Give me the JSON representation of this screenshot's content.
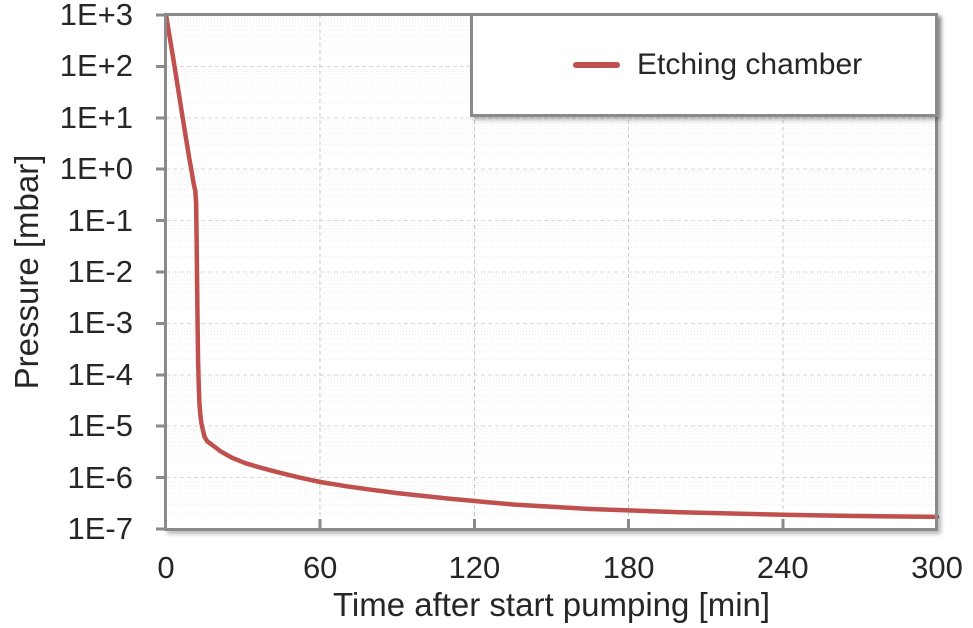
{
  "figure": {
    "background": "#FFFFFF",
    "border_color": "#8A8A8A",
    "text_color": "#262626",
    "grid_major_color": "#D9D9D9",
    "grid_minor_color": "#ECECEC",
    "grid_vertical_color": "#C9C9C9"
  },
  "chart_data": {
    "type": "line",
    "title": "",
    "xlabel": "Time after start pumping [min]",
    "ylabel": "Pressure [mbar]",
    "x_axis": {
      "min": 0,
      "max": 300,
      "ticks": [
        0,
        60,
        120,
        180,
        240,
        300
      ],
      "tick_labels": [
        "0",
        "60",
        "120",
        "180",
        "240",
        "300"
      ]
    },
    "y_axis": {
      "scale": "log",
      "min": 1e-07,
      "max": 1000.0,
      "tick_values": [
        1000.0,
        100.0,
        10.0,
        1.0,
        0.1,
        0.01,
        0.001,
        0.0001,
        1e-05,
        1e-06,
        1e-07
      ],
      "tick_labels": [
        "1E+3",
        "1E+2",
        "1E+1",
        "1E+0",
        "1E-1",
        "1E-2",
        "1E-3",
        "1E-4",
        "1E-5",
        "1E-6",
        "1E-7"
      ]
    },
    "grid": {
      "vertical_lines_at": [
        60,
        120,
        180,
        240
      ],
      "horizontal_major": true,
      "horizontal_minor_log": true
    },
    "legend": {
      "label": "Etching chamber",
      "position": "top-right",
      "line_color": "#C0504D"
    },
    "series": [
      {
        "name": "Etching chamber",
        "color": "#C0504D",
        "points": [
          [
            0,
            1000
          ],
          [
            0.7,
            620
          ],
          [
            1.4,
            380
          ],
          [
            2.1,
            235
          ],
          [
            2.8,
            145
          ],
          [
            3.5,
            88
          ],
          [
            4.2,
            53
          ],
          [
            5,
            30
          ],
          [
            5.7,
            18
          ],
          [
            6.3,
            11.5
          ],
          [
            7,
            7
          ],
          [
            7.7,
            4.2
          ],
          [
            8.4,
            2.6
          ],
          [
            9,
            1.7
          ],
          [
            9.6,
            1.15
          ],
          [
            10.2,
            0.78
          ],
          [
            10.7,
            0.55
          ],
          [
            11.1,
            0.44
          ],
          [
            11.4,
            0.38
          ],
          [
            11.7,
            0.22
          ],
          [
            11.9,
            0.045
          ],
          [
            12.1,
            0.006
          ],
          [
            12.3,
            0.0009
          ],
          [
            12.5,
            0.00018
          ],
          [
            12.75,
            6e-05
          ],
          [
            13,
            2.8e-05
          ],
          [
            13.4,
            1.6e-05
          ],
          [
            13.8,
            1.12e-05
          ],
          [
            14.3,
            8.5e-06
          ],
          [
            15,
            6.2e-06
          ],
          [
            16,
            5.1e-06
          ],
          [
            18,
            4.3e-06
          ],
          [
            21,
            3.3e-06
          ],
          [
            24,
            2.7e-06
          ],
          [
            26,
            2.4e-06
          ],
          [
            31,
            1.9e-06
          ],
          [
            37,
            1.55e-06
          ],
          [
            44,
            1.25e-06
          ],
          [
            52,
            1e-06
          ],
          [
            60,
            8.2e-07
          ],
          [
            70,
            6.8e-07
          ],
          [
            80,
            5.8e-07
          ],
          [
            90,
            5e-07
          ],
          [
            100,
            4.4e-07
          ],
          [
            110,
            3.9e-07
          ],
          [
            120,
            3.5e-07
          ],
          [
            135,
            3e-07
          ],
          [
            150,
            2.7e-07
          ],
          [
            165,
            2.45e-07
          ],
          [
            180,
            2.3e-07
          ],
          [
            200,
            2.12e-07
          ],
          [
            220,
            2e-07
          ],
          [
            240,
            1.9e-07
          ],
          [
            265,
            1.8e-07
          ],
          [
            300,
            1.72e-07
          ]
        ]
      }
    ]
  }
}
